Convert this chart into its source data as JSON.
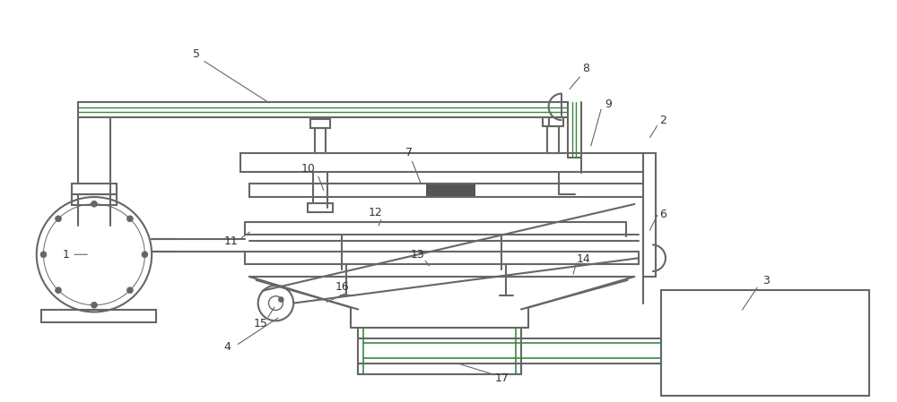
{
  "bg_color": "#ffffff",
  "line_color": "#666666",
  "green_color": "#3a8a3a",
  "label_color": "#333333",
  "fig_width": 10.0,
  "fig_height": 4.49,
  "dpi": 100
}
